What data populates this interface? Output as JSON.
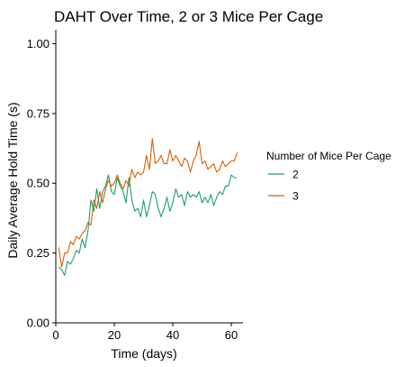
{
  "chart_data": {
    "type": "line",
    "title": "DAHT Over Time, 2 or 3 Mice Per Cage",
    "xlabel": "Time (days)",
    "ylabel": "Daily Average Hold Time (s)",
    "xlim": [
      0,
      64
    ],
    "ylim": [
      0,
      1.05
    ],
    "x_ticks": [
      0,
      20,
      40,
      60
    ],
    "x_tick_labels": [
      "0",
      "20",
      "40",
      "60"
    ],
    "y_ticks": [
      0,
      0.25,
      0.5,
      0.75,
      1.0
    ],
    "y_tick_labels": [
      "0.00",
      "0.25",
      "0.50",
      "0.75",
      "1.00"
    ],
    "grid": false,
    "legend": {
      "title": "Number of Mice Per Cage",
      "position": "right"
    },
    "series": [
      {
        "name": "2",
        "color": "#1b9e77",
        "x": [
          1,
          2,
          3,
          4,
          5,
          6,
          7,
          8,
          9,
          10,
          11,
          12,
          13,
          14,
          15,
          16,
          17,
          18,
          19,
          20,
          21,
          22,
          23,
          24,
          25,
          26,
          27,
          28,
          29,
          30,
          31,
          32,
          33,
          34,
          35,
          36,
          37,
          38,
          39,
          40,
          41,
          42,
          43,
          44,
          45,
          46,
          47,
          48,
          49,
          50,
          51,
          52,
          53,
          54,
          55,
          56,
          57,
          58,
          59,
          60,
          61,
          62
        ],
        "y": [
          0.2,
          0.19,
          0.17,
          0.22,
          0.21,
          0.23,
          0.26,
          0.25,
          0.3,
          0.27,
          0.33,
          0.44,
          0.4,
          0.48,
          0.41,
          0.47,
          0.49,
          0.53,
          0.47,
          0.46,
          0.52,
          0.49,
          0.47,
          0.43,
          0.52,
          0.44,
          0.4,
          0.41,
          0.38,
          0.44,
          0.38,
          0.42,
          0.47,
          0.46,
          0.41,
          0.38,
          0.41,
          0.45,
          0.4,
          0.43,
          0.48,
          0.45,
          0.46,
          0.42,
          0.47,
          0.45,
          0.46,
          0.45,
          0.47,
          0.43,
          0.45,
          0.43,
          0.46,
          0.42,
          0.45,
          0.47,
          0.46,
          0.49,
          0.49,
          0.53,
          0.52,
          0.52
        ]
      },
      {
        "name": "3",
        "color": "#d95f02",
        "x": [
          1,
          2,
          3,
          4,
          5,
          6,
          7,
          8,
          9,
          10,
          11,
          12,
          13,
          14,
          15,
          16,
          17,
          18,
          19,
          20,
          21,
          22,
          23,
          24,
          25,
          26,
          27,
          28,
          29,
          30,
          31,
          32,
          33,
          34,
          35,
          36,
          37,
          38,
          39,
          40,
          41,
          42,
          43,
          44,
          45,
          46,
          47,
          48,
          49,
          50,
          51,
          52,
          53,
          54,
          55,
          56,
          57,
          58,
          59,
          60,
          61,
          62
        ],
        "y": [
          0.27,
          0.2,
          0.25,
          0.25,
          0.29,
          0.28,
          0.31,
          0.3,
          0.32,
          0.33,
          0.36,
          0.35,
          0.44,
          0.41,
          0.47,
          0.43,
          0.48,
          0.51,
          0.49,
          0.5,
          0.53,
          0.5,
          0.48,
          0.51,
          0.49,
          0.55,
          0.52,
          0.54,
          0.53,
          0.54,
          0.6,
          0.55,
          0.66,
          0.57,
          0.58,
          0.6,
          0.57,
          0.57,
          0.62,
          0.58,
          0.6,
          0.58,
          0.56,
          0.59,
          0.58,
          0.54,
          0.58,
          0.6,
          0.65,
          0.57,
          0.58,
          0.55,
          0.56,
          0.57,
          0.54,
          0.55,
          0.58,
          0.56,
          0.57,
          0.58,
          0.58,
          0.61
        ]
      }
    ]
  }
}
